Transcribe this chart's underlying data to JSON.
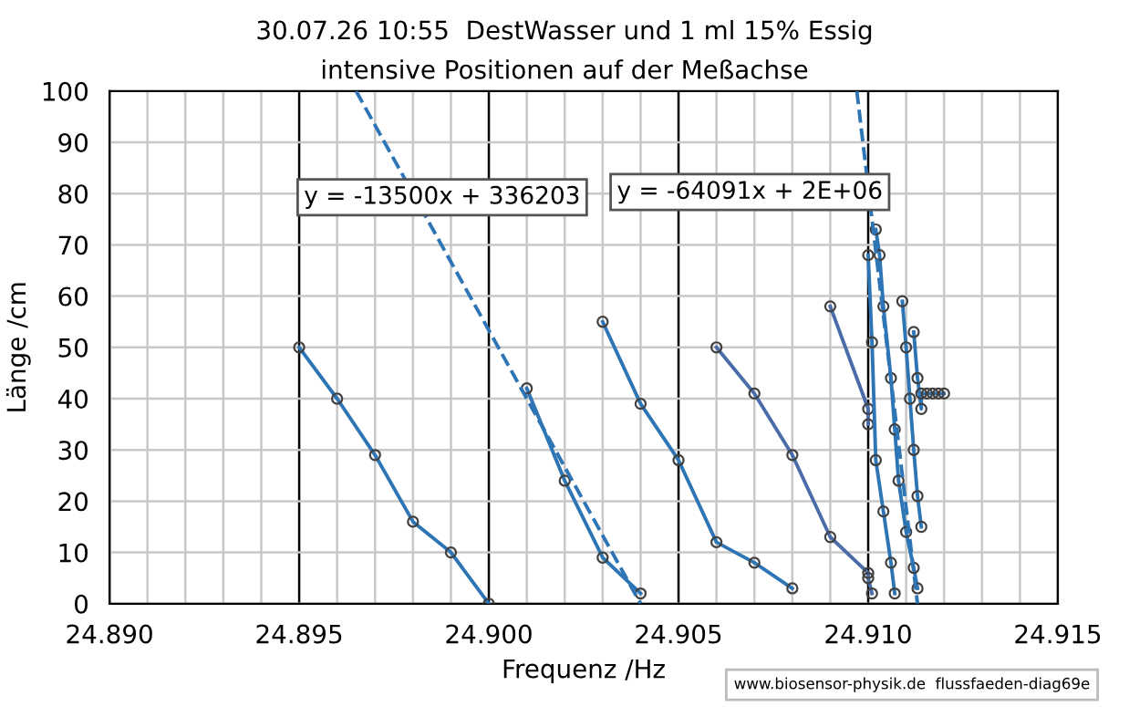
{
  "chart_data": {
    "type": "line",
    "title": "30.07.26 10:55  DestWasser und 1 ml 15% Essig",
    "subtitle": "intensive Positionen auf der Meßachse",
    "xlabel": "Frequenz /Hz",
    "ylabel": "Länge /cm",
    "xlim": [
      24.89,
      24.915
    ],
    "ylim": [
      0,
      100
    ],
    "xticks": [
      {
        "value": 24.89,
        "label": "24.890"
      },
      {
        "value": 24.891,
        "label": null
      },
      {
        "value": 24.892,
        "label": null
      },
      {
        "value": 24.893,
        "label": null
      },
      {
        "value": 24.894,
        "label": null
      },
      {
        "value": 24.895,
        "label": "24.895"
      },
      {
        "value": 24.896,
        "label": null
      },
      {
        "value": 24.897,
        "label": null
      },
      {
        "value": 24.898,
        "label": null
      },
      {
        "value": 24.899,
        "label": null
      },
      {
        "value": 24.9,
        "label": "24.900"
      },
      {
        "value": 24.901,
        "label": null
      },
      {
        "value": 24.902,
        "label": null
      },
      {
        "value": 24.903,
        "label": null
      },
      {
        "value": 24.904,
        "label": null
      },
      {
        "value": 24.905,
        "label": "24.905"
      },
      {
        "value": 24.906,
        "label": null
      },
      {
        "value": 24.907,
        "label": null
      },
      {
        "value": 24.908,
        "label": null
      },
      {
        "value": 24.909,
        "label": null
      },
      {
        "value": 24.91,
        "label": "24.910"
      },
      {
        "value": 24.911,
        "label": null
      },
      {
        "value": 24.912,
        "label": null
      },
      {
        "value": 24.913,
        "label": null
      },
      {
        "value": 24.914,
        "label": null
      },
      {
        "value": 24.915,
        "label": "24.915"
      }
    ],
    "yticks": [
      0,
      10,
      20,
      30,
      40,
      50,
      60,
      70,
      80,
      90,
      100
    ],
    "grid": true,
    "legend": false,
    "marker": "circle",
    "line_style": "solid",
    "series": [
      {
        "color": "#2e75b6",
        "x": [
          24.895,
          24.896,
          24.897,
          24.898,
          24.899,
          24.9
        ],
        "values": [
          50,
          40,
          29,
          16,
          10,
          0
        ]
      },
      {
        "color": "#2e75b6",
        "x": [
          24.901,
          24.902,
          24.903,
          24.904
        ],
        "values": [
          42,
          24,
          9,
          2
        ]
      },
      {
        "color": "#2e75b6",
        "type": "line",
        "marker": "none",
        "line_style": "dashed",
        "x": [
          24.8965,
          24.904
        ],
        "values": [
          100,
          0
        ]
      },
      {
        "color": "#2e75b6",
        "x": [
          24.903,
          24.904,
          24.905,
          24.906,
          24.907,
          24.908
        ],
        "values": [
          55,
          39,
          28,
          12,
          8,
          3
        ]
      },
      {
        "color": "#4a6ca8",
        "x": [
          24.906,
          24.907,
          24.908,
          24.909,
          24.91,
          24.91,
          24.9101
        ],
        "values": [
          50,
          41,
          29,
          13,
          6,
          5,
          2
        ]
      },
      {
        "color": "#4a6ca8",
        "x": [
          24.909,
          24.91,
          24.91
        ],
        "values": [
          58,
          38,
          35
        ]
      },
      {
        "color": "#2e75b6",
        "x": [
          24.91,
          24.9101,
          24.9102,
          24.9104,
          24.9106,
          24.9107
        ],
        "values": [
          68,
          51,
          28,
          18,
          8,
          2
        ]
      },
      {
        "color": "#2e75b6",
        "x": [
          24.9102,
          24.9103,
          24.9104,
          24.9106,
          24.9107,
          24.9108,
          24.911,
          24.9112,
          24.9113
        ],
        "values": [
          73,
          68,
          58,
          44,
          34,
          24,
          14,
          7,
          3
        ]
      },
      {
        "color": "#2e75b6",
        "x": [
          24.9109,
          24.911,
          24.9111,
          24.9112,
          24.9113,
          24.9114
        ],
        "values": [
          59,
          50,
          40,
          30,
          21,
          15
        ]
      },
      {
        "color": "#2e75b6",
        "x": [
          24.9112,
          24.9113,
          24.9114,
          24.9114,
          24.91155,
          24.9117,
          24.91185,
          24.912
        ],
        "values": [
          53,
          44,
          38,
          41,
          41,
          41,
          41,
          41
        ]
      },
      {
        "color": "#2e75b6",
        "type": "line",
        "marker": "none",
        "line_style": "dashed",
        "x": [
          24.9097,
          24.9113
        ],
        "values": [
          100,
          0
        ]
      }
    ],
    "annotations": [
      "y = -13500x + 336203",
      "y = -64091x + 2E+06",
      "www.biosensor-physik.de  flussfaeden-diag69e"
    ]
  }
}
